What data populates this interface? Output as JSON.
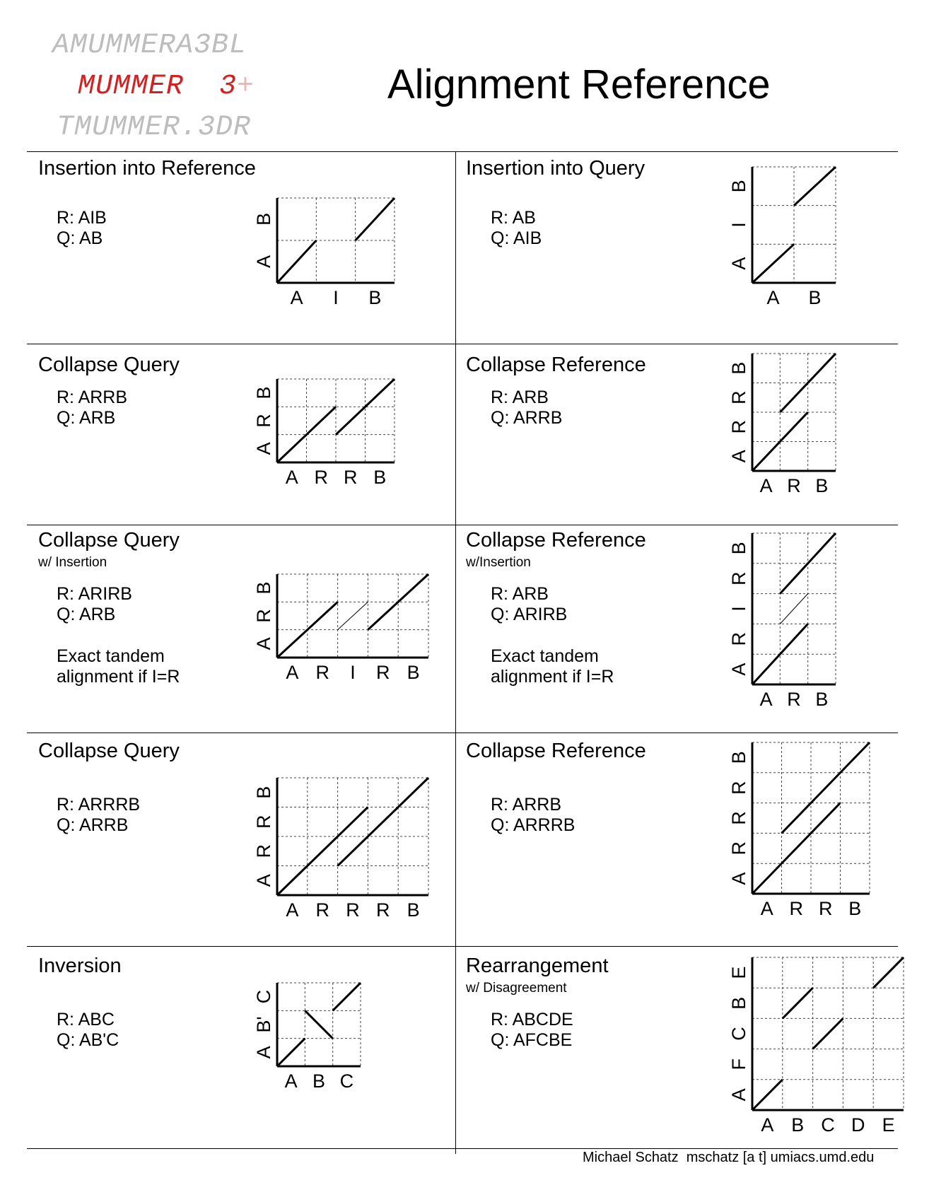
{
  "logo": {
    "line1": "AMUMMERA3BL",
    "line2_main": "MUMMER  3",
    "line2_plus": "+",
    "line3": "TMUMMER.3DR"
  },
  "title": "Alignment Reference",
  "cells": [
    {
      "title": "Insertion into Reference",
      "subtitle": "",
      "lines": [
        "R: AIB",
        "Q: AB"
      ],
      "note": [],
      "plot": {
        "x_labels": [
          "A",
          "I",
          "B"
        ],
        "y_labels": [
          "A",
          "B"
        ],
        "segments": [
          {
            "from": [
              0,
              0
            ],
            "to": [
              1,
              1
            ]
          },
          {
            "from": [
              2,
              1
            ],
            "to": [
              3,
              2
            ]
          }
        ]
      }
    },
    {
      "title": "Insertion into Query",
      "subtitle": "",
      "lines": [
        "R: AB",
        "Q: AIB"
      ],
      "note": [],
      "plot": {
        "x_labels": [
          "A",
          "B"
        ],
        "y_labels": [
          "A",
          "I",
          "B"
        ],
        "segments": [
          {
            "from": [
              0,
              0
            ],
            "to": [
              1,
              1
            ]
          },
          {
            "from": [
              1,
              2
            ],
            "to": [
              2,
              3
            ]
          }
        ]
      }
    },
    {
      "title": "Collapse Query",
      "subtitle": "",
      "lines": [
        "R: ARRB",
        "Q: ARB"
      ],
      "note": [],
      "plot": {
        "x_labels": [
          "A",
          "R",
          "R",
          "B"
        ],
        "y_labels": [
          "A",
          "R",
          "B"
        ],
        "segments": [
          {
            "from": [
              0,
              0
            ],
            "to": [
              2,
              2
            ]
          },
          {
            "from": [
              2,
              1
            ],
            "to": [
              4,
              3
            ]
          }
        ]
      }
    },
    {
      "title": "Collapse Reference",
      "subtitle": "",
      "lines": [
        "R: ARB",
        "Q: ARRB"
      ],
      "note": [],
      "plot": {
        "x_labels": [
          "A",
          "R",
          "B"
        ],
        "y_labels": [
          "A",
          "R",
          "R",
          "B"
        ],
        "segments": [
          {
            "from": [
              0,
              0
            ],
            "to": [
              2,
              2
            ]
          },
          {
            "from": [
              1,
              2
            ],
            "to": [
              3,
              4
            ]
          }
        ]
      }
    },
    {
      "title": "Collapse Query",
      "subtitle": "w/ Insertion",
      "lines": [
        "R: ARIRB",
        "Q: ARB"
      ],
      "note": [
        "Exact tandem",
        "alignment if I=R"
      ],
      "plot": {
        "x_labels": [
          "A",
          "R",
          "I",
          "R",
          "B"
        ],
        "y_labels": [
          "A",
          "R",
          "B"
        ],
        "segments": [
          {
            "from": [
              0,
              0
            ],
            "to": [
              2,
              2
            ]
          },
          {
            "from": [
              2,
              1
            ],
            "to": [
              3,
              2
            ],
            "thin": true
          },
          {
            "from": [
              3,
              1
            ],
            "to": [
              5,
              3
            ]
          }
        ]
      }
    },
    {
      "title": "Collapse Reference",
      "subtitle": "w/Insertion",
      "lines": [
        "R: ARB",
        "Q: ARIRB"
      ],
      "note": [
        "Exact tandem",
        "alignment if I=R"
      ],
      "plot": {
        "x_labels": [
          "A",
          "R",
          "B"
        ],
        "y_labels": [
          "A",
          "R",
          "I",
          "R",
          "B"
        ],
        "segments": [
          {
            "from": [
              0,
              0
            ],
            "to": [
              2,
              2
            ]
          },
          {
            "from": [
              1,
              2
            ],
            "to": [
              2,
              3
            ],
            "thin": true
          },
          {
            "from": [
              1,
              3
            ],
            "to": [
              3,
              5
            ]
          }
        ]
      }
    },
    {
      "title": "Collapse Query",
      "subtitle": "",
      "lines": [
        "R: ARRRB",
        "Q: ARRB"
      ],
      "note": [],
      "plot": {
        "x_labels": [
          "A",
          "R",
          "R",
          "R",
          "B"
        ],
        "y_labels": [
          "A",
          "R",
          "R",
          "B"
        ],
        "segments": [
          {
            "from": [
              0,
              0
            ],
            "to": [
              3,
              3
            ]
          },
          {
            "from": [
              2,
              1
            ],
            "to": [
              5,
              4
            ]
          }
        ]
      }
    },
    {
      "title": "Collapse Reference",
      "subtitle": "",
      "lines": [
        "R: ARRB",
        "Q: ARRRB"
      ],
      "note": [],
      "plot": {
        "x_labels": [
          "A",
          "R",
          "R",
          "B"
        ],
        "y_labels": [
          "A",
          "R",
          "R",
          "R",
          "B"
        ],
        "segments": [
          {
            "from": [
              0,
              0
            ],
            "to": [
              3,
              3
            ]
          },
          {
            "from": [
              1,
              2
            ],
            "to": [
              4,
              5
            ]
          }
        ]
      }
    },
    {
      "title": "Inversion",
      "subtitle": "",
      "lines": [
        "R: ABC",
        "Q: AB'C"
      ],
      "note": [],
      "plot": {
        "x_labels": [
          "A",
          "B",
          "C"
        ],
        "y_labels": [
          "A",
          "B'",
          "C"
        ],
        "segments": [
          {
            "from": [
              0,
              0
            ],
            "to": [
              1,
              1
            ]
          },
          {
            "from": [
              1,
              2
            ],
            "to": [
              2,
              1
            ]
          },
          {
            "from": [
              2,
              2
            ],
            "to": [
              3,
              3
            ]
          }
        ]
      }
    },
    {
      "title": "Rearrangement",
      "subtitle": "w/ Disagreement",
      "lines": [
        "R: ABCDE",
        "Q: AFCBE"
      ],
      "note": [],
      "plot": {
        "x_labels": [
          "A",
          "B",
          "C",
          "D",
          "E"
        ],
        "y_labels": [
          "A",
          "F",
          "C",
          "B",
          "E"
        ],
        "segments": [
          {
            "from": [
              0,
              0
            ],
            "to": [
              1,
              1
            ]
          },
          {
            "from": [
              2,
              2
            ],
            "to": [
              3,
              3
            ]
          },
          {
            "from": [
              1,
              3
            ],
            "to": [
              2,
              4
            ]
          },
          {
            "from": [
              4,
              4
            ],
            "to": [
              5,
              5
            ]
          }
        ]
      }
    }
  ],
  "footer": "Michael Schatz  mschatz [a t] umiacs.umd.edu"
}
